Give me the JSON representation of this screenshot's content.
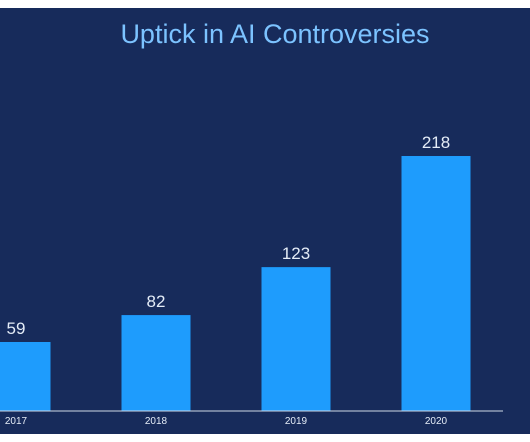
{
  "colors": {
    "background": "#172b5b",
    "bar": "#1e9cfd",
    "title": "#7cc3ff",
    "label": "#e4ecf7",
    "axis": "#cfd8e6"
  },
  "chart_data": {
    "type": "bar",
    "title": "Uptick in AI Controversies",
    "xlabel": "",
    "ylabel": "",
    "categories": [
      "2017",
      "2018",
      "2019",
      "2020"
    ],
    "values": [
      59,
      82,
      123,
      218
    ],
    "data_labels": [
      "59",
      "82",
      "123",
      "218"
    ],
    "ylim": [
      0,
      240
    ],
    "grid": false,
    "legend": "none"
  }
}
